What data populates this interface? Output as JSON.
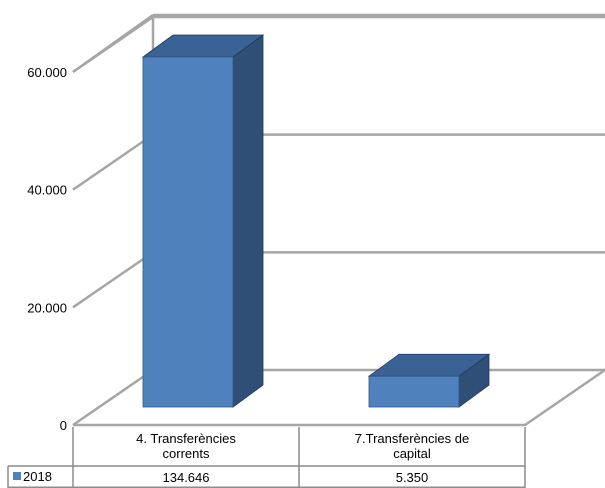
{
  "chart_data": {
    "type": "bar",
    "style": "3d-column-with-data-table",
    "categories": [
      "4. Transferències corrents",
      "7.Transferències de capital"
    ],
    "category_lines": [
      [
        "4. Transferències",
        "corrents"
      ],
      [
        "7.Transferències de",
        "capital"
      ]
    ],
    "series": [
      {
        "name": "2018",
        "values": [
          134646,
          5350
        ],
        "value_labels": [
          "134.646",
          "5.350"
        ],
        "color": "#4f81bd"
      }
    ],
    "y_ticks": [
      0,
      20000,
      40000,
      60000
    ],
    "y_tick_labels": [
      "0",
      "20.000",
      "40.000",
      "60.000"
    ],
    "ylim": [
      0,
      60000
    ],
    "grid": true,
    "legend": "data-table-left",
    "title": "",
    "xlabel": "",
    "ylabel": ""
  },
  "colors": {
    "bar_front": "#4f81bd",
    "bar_side": "#2f4f77",
    "bar_top": "#3a6295",
    "grid": "#a6a6a6",
    "table_border": "#8c8c8c"
  }
}
